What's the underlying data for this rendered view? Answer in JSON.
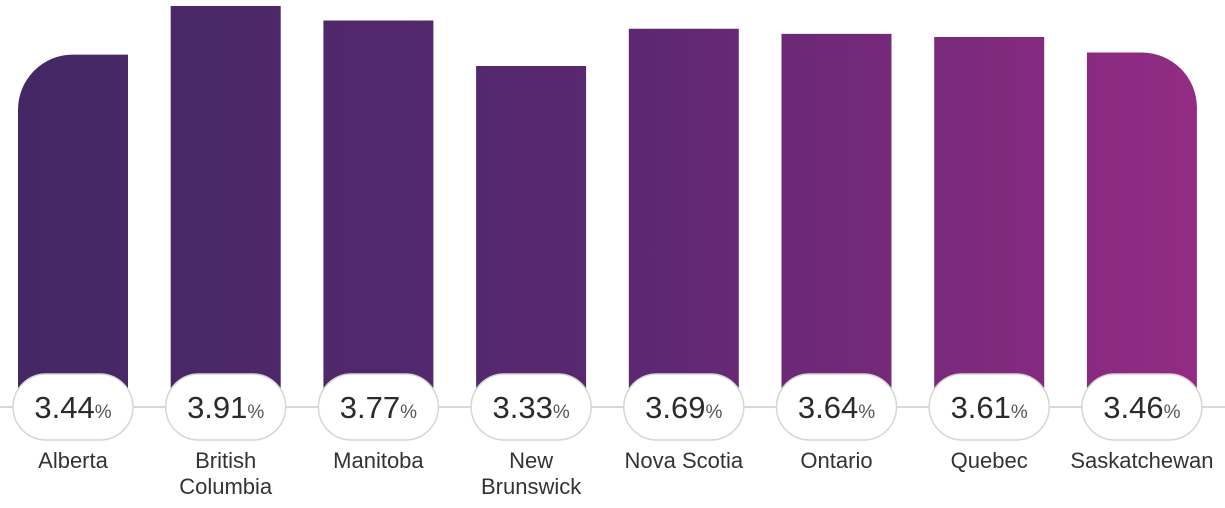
{
  "chart_data": {
    "type": "bar",
    "title": "",
    "xlabel": "",
    "ylabel": "",
    "unit": "%",
    "categories": [
      [
        "Alberta"
      ],
      [
        "British",
        "Columbia"
      ],
      [
        "Manitoba"
      ],
      [
        "New",
        "Brunswick"
      ],
      [
        "Nova Scotia"
      ],
      [
        "Ontario"
      ],
      [
        "Quebec"
      ],
      [
        "Saskatchewan"
      ]
    ],
    "values": [
      3.44,
      3.91,
      3.77,
      3.33,
      3.69,
      3.64,
      3.61,
      3.46
    ],
    "value_labels": [
      "3.44",
      "3.91",
      "3.77",
      "3.33",
      "3.69",
      "3.64",
      "3.61",
      "3.46"
    ],
    "ylim": [
      0,
      3.91
    ],
    "grid": false,
    "legend": "none",
    "colors": {
      "gradient_start": "#432864",
      "gradient_mid": "#5a2870",
      "gradient_end": "#962b84",
      "pill_border": "#d6d6d6",
      "axis_line": "#cccccc"
    }
  }
}
